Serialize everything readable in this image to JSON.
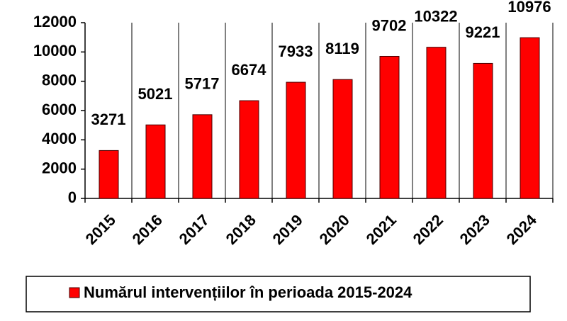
{
  "chart_data": {
    "type": "bar",
    "categories": [
      "2015",
      "2016",
      "2017",
      "2018",
      "2019",
      "2020",
      "2021",
      "2022",
      "2023",
      "2024"
    ],
    "series": [
      {
        "name": "Numărul intervențiilor în perioada 2015-2024",
        "color": "#ff0000",
        "values": [
          3271,
          5021,
          5717,
          6674,
          7933,
          8119,
          9702,
          10322,
          9221,
          10976
        ]
      }
    ],
    "ylim": [
      0,
      12000
    ],
    "yticks": [
      0,
      2000,
      4000,
      6000,
      8000,
      10000,
      12000
    ],
    "grid": true,
    "legend": "bottom"
  }
}
